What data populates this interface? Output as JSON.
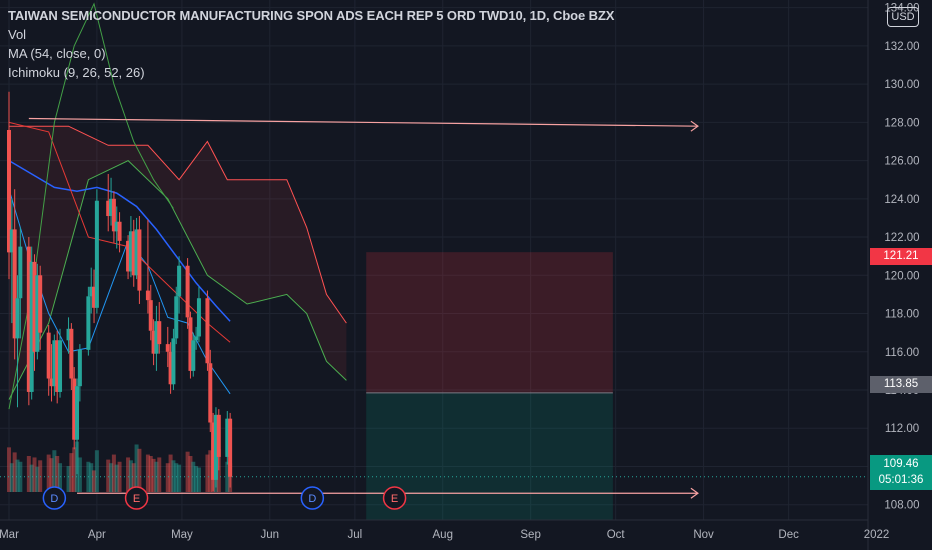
{
  "header": {
    "title": "TAIWAN SEMICONDUCTOR MANUFACTURING SPON ADS EACH REP 5 ORD TWD10, 1D, Cboe BZX",
    "indicators": [
      "Vol",
      "MA (54, close, 0)",
      "Ichimoku (9, 26, 52, 26)"
    ],
    "currency": "USD"
  },
  "price_tags": {
    "stop": "121.21",
    "entry": "113.85",
    "last": "109.46",
    "countdown": "05:01:36"
  },
  "colors": {
    "background": "#131722",
    "grid": "#1f2431",
    "up": "#26a69a",
    "down": "#ef5350",
    "ma": "#2962ff",
    "kumo_green": "#4caf50",
    "kumo_red": "#ff5252",
    "tag_red": "#f23645",
    "tag_grey": "#5d606b",
    "tag_green": "#089981"
  },
  "chart_data": {
    "type": "candlestick",
    "ylim": [
      107.2,
      134.4
    ],
    "y_ticks": [
      "108.00",
      "110.00",
      "112.00",
      "114.00",
      "116.00",
      "118.00",
      "120.00",
      "122.00",
      "124.00",
      "126.00",
      "128.00",
      "130.00",
      "132.00",
      "134.00"
    ],
    "x_ticks": [
      "Mar",
      "Apr",
      "May",
      "Jun",
      "Jul",
      "Aug",
      "Sep",
      "Oct",
      "Nov",
      "Dec",
      "2022"
    ],
    "x_tick_dates": [
      "2021-03-01",
      "2021-04-01",
      "2021-05-01",
      "2021-06-01",
      "2021-07-01",
      "2021-08-01",
      "2021-09-01",
      "2021-10-01",
      "2021-11-01",
      "2021-12-01",
      "2022-01-01"
    ],
    "last_price": 109.46,
    "risk_reward": {
      "start_date": "2021-07-05",
      "end_date": "2021-09-30",
      "entry": 113.85,
      "stop": 121.21,
      "target": 107.2
    },
    "trend_lines": [
      {
        "from_date": "2021-03-08",
        "from_price": 128.2,
        "to_date": "2021-10-30",
        "to_price": 127.8
      },
      {
        "from_date": "2021-03-25",
        "from_price": 108.6,
        "to_date": "2021-10-30",
        "to_price": 108.6
      }
    ],
    "event_markers": [
      {
        "label": "D",
        "date": "2021-03-17"
      },
      {
        "label": "E",
        "date": "2021-04-15"
      },
      {
        "label": "D",
        "date": "2021-06-16"
      },
      {
        "label": "E",
        "date": "2021-07-15"
      }
    ],
    "candles": [
      {
        "date": "2021-03-01",
        "open": 127.6,
        "high": 129.6,
        "low": 119.8,
        "close": 121.2
      },
      {
        "date": "2021-03-02",
        "open": 121.2,
        "high": 124.0,
        "low": 117.5,
        "close": 122.4
      },
      {
        "date": "2021-03-03",
        "open": 122.4,
        "high": 124.5,
        "low": 115.6,
        "close": 116.7
      },
      {
        "date": "2021-03-04",
        "open": 116.7,
        "high": 120.0,
        "low": 113.1,
        "close": 118.8
      },
      {
        "date": "2021-03-05",
        "open": 118.8,
        "high": 122.5,
        "low": 116.7,
        "close": 121.5
      },
      {
        "date": "2021-03-08",
        "open": 121.5,
        "high": 122.0,
        "low": 113.2,
        "close": 113.9
      },
      {
        "date": "2021-03-09",
        "open": 113.9,
        "high": 121.5,
        "low": 113.5,
        "close": 120.7
      },
      {
        "date": "2021-03-10",
        "open": 120.7,
        "high": 121.1,
        "low": 115.0,
        "close": 116.0
      },
      {
        "date": "2021-03-11",
        "open": 116.0,
        "high": 120.6,
        "low": 115.6,
        "close": 120.0
      },
      {
        "date": "2021-03-12",
        "open": 120.0,
        "high": 120.5,
        "low": 116.1,
        "close": 117.0
      },
      {
        "date": "2021-03-15",
        "open": 117.0,
        "high": 117.4,
        "low": 113.7,
        "close": 114.6
      },
      {
        "date": "2021-03-16",
        "open": 114.6,
        "high": 116.4,
        "low": 113.4,
        "close": 114.2
      },
      {
        "date": "2021-03-17",
        "open": 114.2,
        "high": 116.9,
        "low": 113.7,
        "close": 116.6
      },
      {
        "date": "2021-03-18",
        "open": 116.6,
        "high": 117.1,
        "low": 113.3,
        "close": 113.9
      },
      {
        "date": "2021-03-19",
        "open": 113.9,
        "high": 117.2,
        "low": 113.6,
        "close": 116.6
      },
      {
        "date": "2021-03-22",
        "open": 116.6,
        "high": 117.8,
        "low": 115.9,
        "close": 117.2
      },
      {
        "date": "2021-03-23",
        "open": 117.2,
        "high": 117.5,
        "low": 114.0,
        "close": 114.6
      },
      {
        "date": "2021-03-24",
        "open": 114.6,
        "high": 115.2,
        "low": 110.9,
        "close": 111.4
      },
      {
        "date": "2021-03-25",
        "open": 111.4,
        "high": 114.6,
        "low": 109.6,
        "close": 114.2
      },
      {
        "date": "2021-03-26",
        "open": 114.2,
        "high": 116.4,
        "low": 113.4,
        "close": 116.1
      },
      {
        "date": "2021-03-29",
        "open": 116.1,
        "high": 119.4,
        "low": 115.8,
        "close": 118.9
      },
      {
        "date": "2021-03-30",
        "open": 118.9,
        "high": 120.4,
        "low": 118.0,
        "close": 119.4
      },
      {
        "date": "2021-03-31",
        "open": 119.4,
        "high": 120.3,
        "low": 117.5,
        "close": 118.3
      },
      {
        "date": "2021-04-01",
        "open": 118.3,
        "high": 124.5,
        "low": 118.0,
        "close": 123.9
      },
      {
        "date": "2021-04-05",
        "open": 123.9,
        "high": 125.3,
        "low": 122.3,
        "close": 123.1
      },
      {
        "date": "2021-04-06",
        "open": 123.1,
        "high": 125.1,
        "low": 122.6,
        "close": 124.0
      },
      {
        "date": "2021-04-07",
        "open": 124.0,
        "high": 124.4,
        "low": 121.7,
        "close": 122.3
      },
      {
        "date": "2021-04-08",
        "open": 122.3,
        "high": 123.6,
        "low": 121.4,
        "close": 122.8
      },
      {
        "date": "2021-04-09",
        "open": 122.8,
        "high": 123.3,
        "low": 121.2,
        "close": 121.8
      },
      {
        "date": "2021-04-12",
        "open": 121.8,
        "high": 122.1,
        "low": 119.8,
        "close": 120.2
      },
      {
        "date": "2021-04-13",
        "open": 120.2,
        "high": 123.1,
        "low": 119.9,
        "close": 122.3
      },
      {
        "date": "2021-04-14",
        "open": 122.3,
        "high": 122.9,
        "low": 119.4,
        "close": 120.0
      },
      {
        "date": "2021-04-15",
        "open": 120.0,
        "high": 123.0,
        "low": 119.8,
        "close": 122.4
      },
      {
        "date": "2021-04-16",
        "open": 122.4,
        "high": 123.1,
        "low": 118.5,
        "close": 119.2
      },
      {
        "date": "2021-04-19",
        "open": 119.2,
        "high": 122.9,
        "low": 118.0,
        "close": 118.7
      },
      {
        "date": "2021-04-20",
        "open": 118.7,
        "high": 119.5,
        "low": 116.6,
        "close": 117.1
      },
      {
        "date": "2021-04-21",
        "open": 117.1,
        "high": 117.7,
        "low": 115.3,
        "close": 115.9
      },
      {
        "date": "2021-04-22",
        "open": 115.9,
        "high": 118.4,
        "low": 115.0,
        "close": 117.6
      },
      {
        "date": "2021-04-23",
        "open": 117.6,
        "high": 118.6,
        "low": 115.9,
        "close": 116.4
      },
      {
        "date": "2021-04-26",
        "open": 116.4,
        "high": 117.3,
        "low": 115.2,
        "close": 116.0
      },
      {
        "date": "2021-04-27",
        "open": 116.0,
        "high": 116.5,
        "low": 113.8,
        "close": 114.3
      },
      {
        "date": "2021-04-28",
        "open": 114.3,
        "high": 117.2,
        "low": 114.0,
        "close": 116.7
      },
      {
        "date": "2021-04-29",
        "open": 116.7,
        "high": 119.4,
        "low": 116.4,
        "close": 118.9
      },
      {
        "date": "2021-04-30",
        "open": 118.9,
        "high": 121.0,
        "low": 118.0,
        "close": 120.5
      },
      {
        "date": "2021-05-03",
        "open": 120.5,
        "high": 120.9,
        "low": 117.2,
        "close": 117.8
      },
      {
        "date": "2021-05-04",
        "open": 117.8,
        "high": 118.1,
        "low": 114.6,
        "close": 115.0
      },
      {
        "date": "2021-05-05",
        "open": 115.0,
        "high": 117.0,
        "low": 114.7,
        "close": 116.6
      },
      {
        "date": "2021-05-06",
        "open": 116.6,
        "high": 117.3,
        "low": 116.1,
        "close": 116.8
      },
      {
        "date": "2021-05-07",
        "open": 116.8,
        "high": 119.4,
        "low": 116.5,
        "close": 118.8
      },
      {
        "date": "2021-05-10",
        "open": 118.8,
        "high": 119.2,
        "low": 115.0,
        "close": 115.4
      },
      {
        "date": "2021-05-11",
        "open": 115.4,
        "high": 116.1,
        "low": 111.8,
        "close": 112.3
      },
      {
        "date": "2021-05-12",
        "open": 112.3,
        "high": 112.8,
        "low": 108.7,
        "close": 109.3
      },
      {
        "date": "2021-05-13",
        "open": 109.3,
        "high": 113.1,
        "low": 108.9,
        "close": 112.7
      },
      {
        "date": "2021-05-14",
        "open": 112.7,
        "high": 113.0,
        "low": 109.8,
        "close": 110.5
      },
      {
        "date": "2021-05-17",
        "open": 110.5,
        "high": 112.9,
        "low": 110.1,
        "close": 112.5
      },
      {
        "date": "2021-05-18",
        "open": 112.5,
        "high": 112.8,
        "low": 108.9,
        "close": 109.46
      }
    ],
    "volume_scale_max": 100,
    "volume": [
      62,
      40,
      55,
      45,
      42,
      50,
      38,
      48,
      35,
      44,
      52,
      47,
      58,
      50,
      40,
      36,
      54,
      62,
      70,
      48,
      42,
      40,
      30,
      58,
      45,
      40,
      52,
      38,
      42,
      48,
      44,
      40,
      66,
      60,
      52,
      50,
      46,
      42,
      48,
      40,
      52,
      44,
      40,
      38,
      56,
      50,
      42,
      36,
      34,
      52,
      58,
      72,
      55,
      60,
      42,
      40
    ],
    "ma54": [
      {
        "date": "2021-03-01",
        "value": 126.0
      },
      {
        "date": "2021-03-09",
        "value": 125.3
      },
      {
        "date": "2021-03-17",
        "value": 124.6
      },
      {
        "date": "2021-03-25",
        "value": 124.4
      },
      {
        "date": "2021-04-01",
        "value": 124.6
      },
      {
        "date": "2021-04-08",
        "value": 124.3
      },
      {
        "date": "2021-04-15",
        "value": 123.6
      },
      {
        "date": "2021-04-22",
        "value": 122.4
      },
      {
        "date": "2021-04-29",
        "value": 121.0
      },
      {
        "date": "2021-05-06",
        "value": 119.6
      },
      {
        "date": "2021-05-13",
        "value": 118.4
      },
      {
        "date": "2021-05-18",
        "value": 117.6
      }
    ],
    "ichimoku": {
      "tenkan": [
        {
          "date": "2021-03-01",
          "value": 124.5
        },
        {
          "date": "2021-03-08",
          "value": 121.0
        },
        {
          "date": "2021-03-15",
          "value": 118.0
        },
        {
          "date": "2021-03-22",
          "value": 116.0
        },
        {
          "date": "2021-03-29",
          "value": 116.2
        },
        {
          "date": "2021-04-05",
          "value": 119.0
        },
        {
          "date": "2021-04-12",
          "value": 121.8
        },
        {
          "date": "2021-04-19",
          "value": 120.5
        },
        {
          "date": "2021-04-26",
          "value": 117.8
        },
        {
          "date": "2021-05-03",
          "value": 117.5
        },
        {
          "date": "2021-05-10",
          "value": 115.5
        },
        {
          "date": "2021-05-18",
          "value": 113.8
        }
      ],
      "kijun": [
        {
          "date": "2021-03-01",
          "value": 128.0
        },
        {
          "date": "2021-03-15",
          "value": 127.5
        },
        {
          "date": "2021-03-29",
          "value": 122.0
        },
        {
          "date": "2021-04-12",
          "value": 121.5
        },
        {
          "date": "2021-04-26",
          "value": 119.5
        },
        {
          "date": "2021-05-10",
          "value": 117.5
        },
        {
          "date": "2021-05-18",
          "value": 116.5
        }
      ],
      "chikou": [
        {
          "date": "2021-03-01",
          "value": 113.0
        },
        {
          "date": "2021-03-10",
          "value": 120.0
        },
        {
          "date": "2021-03-17",
          "value": 128.0
        },
        {
          "date": "2021-03-24",
          "value": 132.0
        },
        {
          "date": "2021-03-31",
          "value": 134.2
        },
        {
          "date": "2021-04-07",
          "value": 130.0
        },
        {
          "date": "2021-04-14",
          "value": 127.0
        },
        {
          "date": "2021-04-21",
          "value": 125.0
        },
        {
          "date": "2021-04-28",
          "value": 123.5
        }
      ],
      "senkou_a": [
        {
          "date": "2021-03-01",
          "value": 113.5
        },
        {
          "date": "2021-03-15",
          "value": 117.5
        },
        {
          "date": "2021-03-29",
          "value": 125.0
        },
        {
          "date": "2021-04-12",
          "value": 126.0
        },
        {
          "date": "2021-04-26",
          "value": 124.0
        },
        {
          "date": "2021-05-10",
          "value": 120.0
        },
        {
          "date": "2021-05-24",
          "value": 118.5
        },
        {
          "date": "2021-06-07",
          "value": 119.0
        },
        {
          "date": "2021-06-14",
          "value": 118.0
        },
        {
          "date": "2021-06-21",
          "value": 115.5
        },
        {
          "date": "2021-06-28",
          "value": 114.5
        }
      ],
      "senkou_b": [
        {
          "date": "2021-03-01",
          "value": 127.8
        },
        {
          "date": "2021-03-22",
          "value": 127.8
        },
        {
          "date": "2021-04-05",
          "value": 126.8
        },
        {
          "date": "2021-04-19",
          "value": 126.8
        },
        {
          "date": "2021-04-30",
          "value": 125.0
        },
        {
          "date": "2021-05-10",
          "value": 127.0
        },
        {
          "date": "2021-05-17",
          "value": 125.0
        },
        {
          "date": "2021-06-07",
          "value": 125.0
        },
        {
          "date": "2021-06-14",
          "value": 122.5
        },
        {
          "date": "2021-06-21",
          "value": 119.0
        },
        {
          "date": "2021-06-28",
          "value": 117.5
        }
      ]
    }
  }
}
